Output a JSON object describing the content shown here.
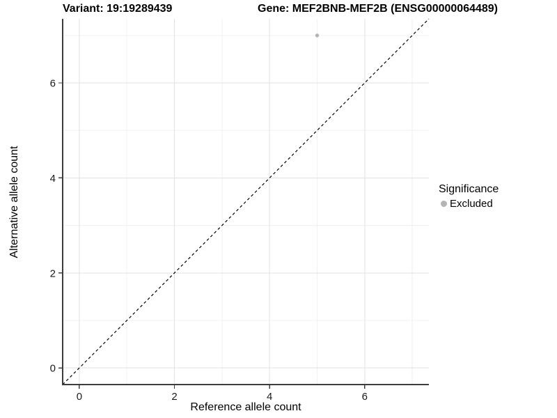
{
  "titles": {
    "variant": "Variant: 19:19289439",
    "gene": "Gene: MEF2BNB-MEF2B (ENSG00000064489)"
  },
  "legend": {
    "title": "Significance",
    "items": [
      {
        "label": "Excluded",
        "color": "#b4b4b4"
      }
    ]
  },
  "axes": {
    "xlabel": "Reference allele count",
    "ylabel": "Alternative allele count"
  },
  "colors": {
    "point": "#b4b4b4",
    "grid_major": "#e2e2e2",
    "grid_minor": "#f0f0f0",
    "axis_line": "#3c3c3c",
    "tick_label": "#1a1a1a",
    "reference_line": "#000000"
  },
  "chart_data": {
    "type": "scatter",
    "title": "Variant: 19:19289439 — Gene: MEF2BNB-MEF2B (ENSG00000064489)",
    "xlabel": "Reference allele count",
    "ylabel": "Alternative allele count",
    "xlim": [
      0,
      7
    ],
    "ylim": [
      0,
      7
    ],
    "xticks": [
      0,
      2,
      4,
      6
    ],
    "yticks": [
      0,
      2,
      4,
      6
    ],
    "xticks_minor": [
      1,
      3,
      5,
      7
    ],
    "yticks_minor": [
      1,
      3,
      5,
      7
    ],
    "grid": true,
    "legend_position": "right",
    "series": [
      {
        "name": "Excluded",
        "color": "#b4b4b4",
        "points": [
          {
            "x": 5,
            "y": 7
          }
        ]
      }
    ],
    "reference_line": {
      "type": "identity y=x",
      "style": "dashed",
      "color": "#000000"
    }
  }
}
